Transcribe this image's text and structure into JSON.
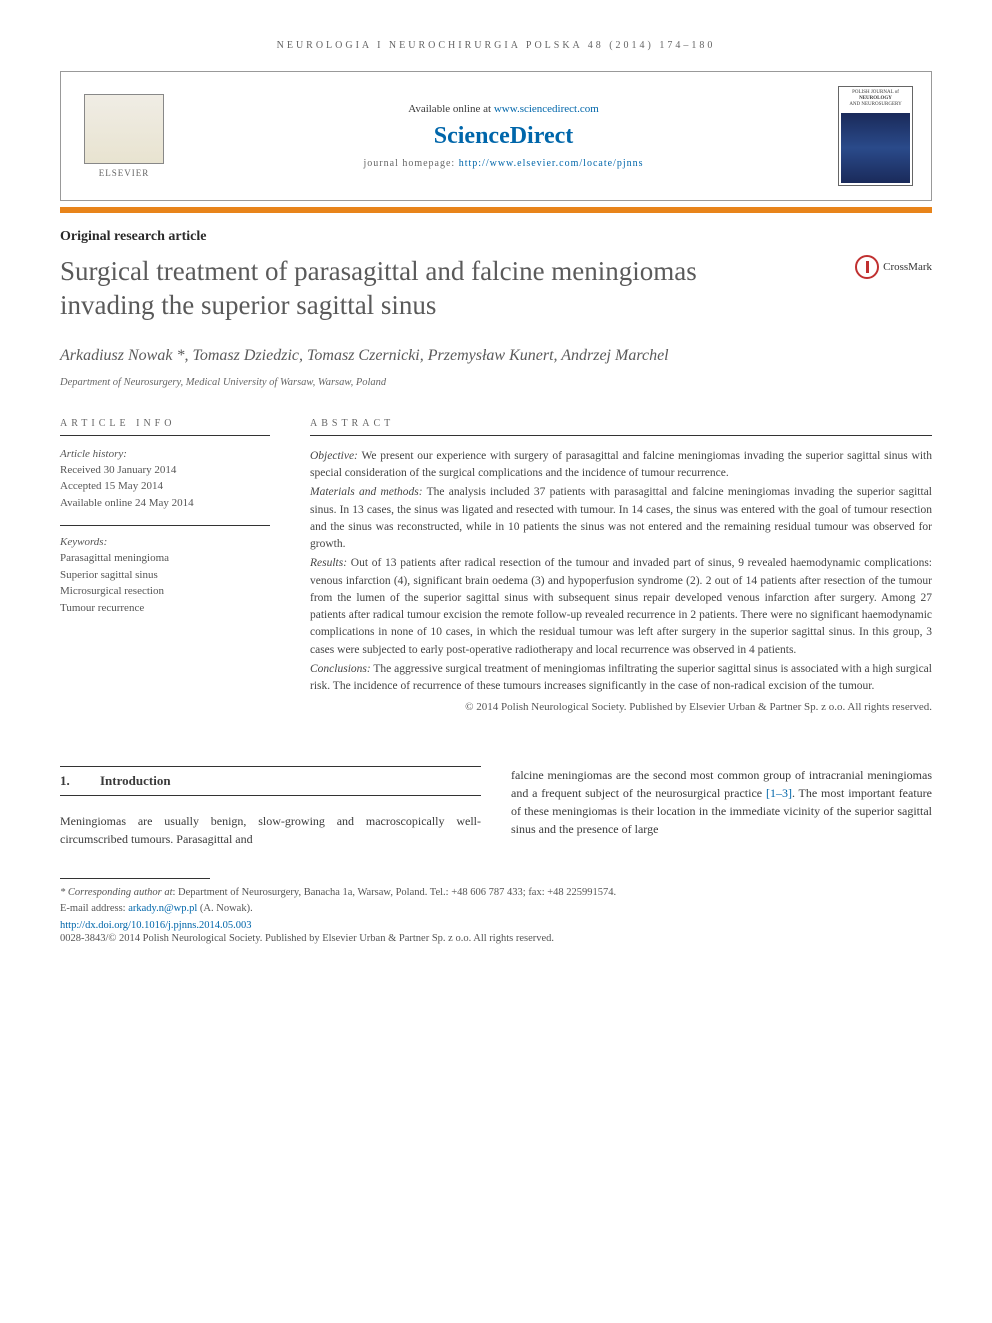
{
  "journal_ref": "NEUROLOGIA I NEUROCHIRURGIA POLSKA 48 (2014) 174–180",
  "header": {
    "elsevier_label": "ELSEVIER",
    "available": "Available online at ",
    "available_url": "www.sciencedirect.com",
    "brand": "ScienceDirect",
    "homepage_label": "journal homepage: ",
    "homepage_url": "http://www.elsevier.com/locate/pjnns",
    "cover_line1": "POLISH JOURNAL of",
    "cover_line2": "NEUROLOGY",
    "cover_line3": "AND NEUROSURGERY"
  },
  "colors": {
    "bar": "#e8841a",
    "link": "#0066aa",
    "title": "#5a5a5a"
  },
  "article_type": "Original research article",
  "title": "Surgical treatment of parasagittal and falcine meningiomas invading the superior sagittal sinus",
  "crossmark": "CrossMark",
  "authors": "Arkadiusz Nowak *, Tomasz Dziedzic, Tomasz Czernicki, Przemysław Kunert, Andrzej Marchel",
  "affiliation": "Department of Neurosurgery, Medical University of Warsaw, Warsaw, Poland",
  "info_label": "ARTICLE INFO",
  "abstract_label": "ABSTRACT",
  "history": {
    "head": "Article history:",
    "received": "Received 30 January 2014",
    "accepted": "Accepted 15 May 2014",
    "online": "Available online 24 May 2014"
  },
  "keywords": {
    "head": "Keywords:",
    "items": [
      "Parasagittal meningioma",
      "Superior sagittal sinus",
      "Microsurgical resection",
      "Tumour recurrence"
    ]
  },
  "abstract": {
    "objective_label": "Objective:",
    "objective": " We present our experience with surgery of parasagittal and falcine meningiomas invading the superior sagittal sinus with special consideration of the surgical complications and the incidence of tumour recurrence.",
    "methods_label": "Materials and methods:",
    "methods": " The analysis included 37 patients with parasagittal and falcine meningiomas invading the superior sagittal sinus. In 13 cases, the sinus was ligated and resected with tumour. In 14 cases, the sinus was entered with the goal of tumour resection and the sinus was reconstructed, while in 10 patients the sinus was not entered and the remaining residual tumour was observed for growth.",
    "results_label": "Results:",
    "results": " Out of 13 patients after radical resection of the tumour and invaded part of sinus, 9 revealed haemodynamic complications: venous infarction (4), significant brain oedema (3) and hypoperfusion syndrome (2). 2 out of 14 patients after resection of the tumour from the lumen of the superior sagittal sinus with subsequent sinus repair developed venous infarction after surgery. Among 27 patients after radical tumour excision the remote follow-up revealed recurrence in 2 patients. There were no significant haemodynamic complications in none of 10 cases, in which the residual tumour was left after surgery in the superior sagittal sinus. In this group, 3 cases were subjected to early post-operative radiotherapy and local recurrence was observed in 4 patients.",
    "conclusions_label": "Conclusions:",
    "conclusions": " The aggressive surgical treatment of meningiomas infiltrating the superior sagittal sinus is associated with a high surgical risk. The incidence of recurrence of these tumours increases significantly in the case of non-radical excision of the tumour.",
    "copyright": "© 2014 Polish Neurological Society. Published by Elsevier Urban & Partner Sp. z o.o. All rights reserved."
  },
  "section1": {
    "num": "1.",
    "title": "Introduction",
    "left": "Meningiomas are usually benign, slow-growing and macroscopically well-circumscribed tumours. Parasagittal and",
    "right_a": "falcine meningiomas are the second most common group of intracranial meningiomas and a frequent subject of the neurosurgical practice ",
    "right_ref": "[1–3]",
    "right_b": ". The most important feature of these meningiomas is their location in the immediate vicinity of the superior sagittal sinus and the presence of large"
  },
  "footer": {
    "corr_label": "* Corresponding author at",
    "corr": ": Department of Neurosurgery, Banacha 1a, Warsaw, Poland. Tel.: +48 606 787 433; fax: +48 225991574.",
    "email_label": "E-mail address: ",
    "email": "arkady.n@wp.pl",
    "email_suffix": " (A. Nowak).",
    "doi": "http://dx.doi.org/10.1016/j.pjnns.2014.05.003",
    "issn": "0028-3843/© 2014 Polish Neurological Society. Published by Elsevier Urban & Partner Sp. z o.o. All rights reserved."
  }
}
